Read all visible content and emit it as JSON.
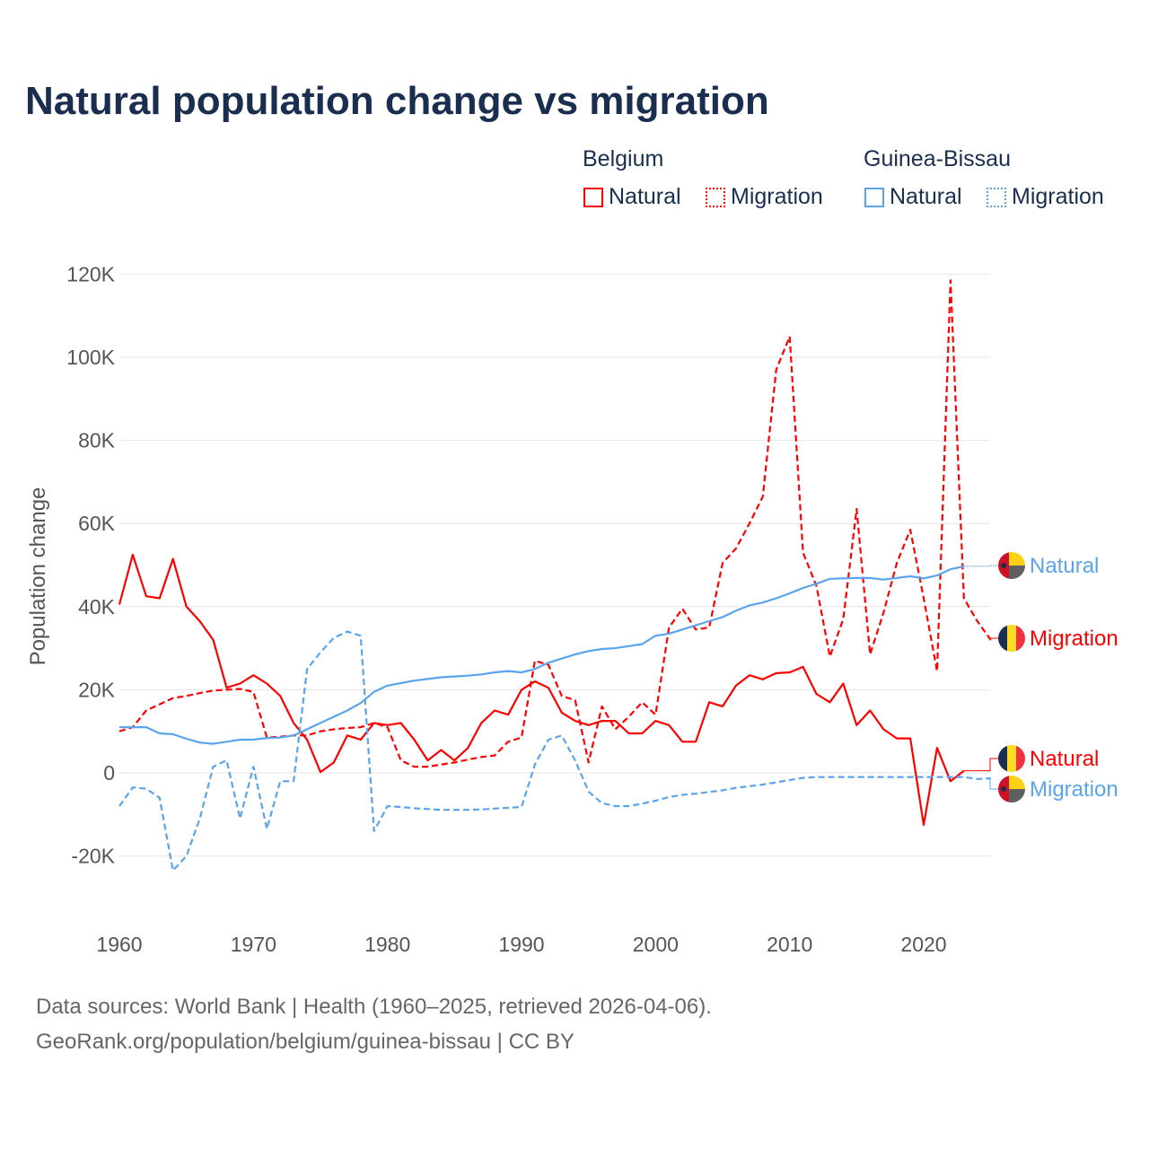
{
  "chart_data": {
    "type": "line",
    "title": "Natural population change vs migration",
    "xlabel": "",
    "ylabel": "Population change",
    "xlim": [
      1960,
      2025
    ],
    "ylim": [
      -20000,
      120000
    ],
    "yticks": [
      -20000,
      0,
      20000,
      40000,
      60000,
      80000,
      100000,
      120000
    ],
    "ytick_labels": [
      "-20K",
      "0",
      "20K",
      "40K",
      "60K",
      "80K",
      "100K",
      "120K"
    ],
    "xticks": [
      1960,
      1970,
      1980,
      1990,
      2000,
      2010,
      2020
    ],
    "xtick_labels": [
      "1960",
      "1970",
      "1980",
      "1990",
      "2000",
      "2010",
      "2020"
    ],
    "grid": true,
    "legend_position": "top-right",
    "legend_groups": [
      "Belgium",
      "Guinea-Bissau"
    ],
    "series": [
      {
        "name": "Natural",
        "country": "Belgium",
        "color": "#ff0000",
        "dash": "solid",
        "start_year": 1960,
        "end_label": "Natural",
        "values": [
          40500,
          52500,
          42500,
          42000,
          51500,
          40000,
          36500,
          32000,
          20500,
          21500,
          23500,
          21500,
          18500,
          12000,
          8000,
          200,
          2500,
          9000,
          8000,
          12000,
          11500,
          12000,
          8000,
          3000,
          5500,
          3000,
          6000,
          12000,
          15000,
          14000,
          20000,
          22000,
          20500,
          14500,
          12500,
          11500,
          12500,
          12500,
          9500,
          9500,
          12500,
          11500,
          7500,
          7500,
          17000,
          16000,
          21000,
          23500,
          22500,
          24000,
          24200,
          25500,
          19000,
          17000,
          21500,
          11500,
          15000,
          10500,
          8300,
          8300,
          -12500,
          6000,
          -2000,
          500
        ]
      },
      {
        "name": "Migration",
        "country": "Belgium",
        "color": "#ff0000",
        "dash": "dashed",
        "start_year": 1960,
        "end_label": "Migration",
        "values": [
          10000,
          11000,
          15000,
          16500,
          18000,
          18500,
          19200,
          19800,
          20000,
          20200,
          19500,
          8500,
          8700,
          9000,
          9000,
          10000,
          10500,
          10800,
          11000,
          12000,
          11000,
          3000,
          1500,
          1500,
          2000,
          2500,
          3200,
          3800,
          4200,
          7500,
          8500,
          27000,
          26000,
          18500,
          17500,
          2500,
          16000,
          10500,
          13500,
          17000,
          14000,
          35000,
          39500,
          34500,
          35000,
          50500,
          54000,
          60000,
          66500,
          97000,
          105000,
          53000,
          45000,
          28000,
          37000,
          63500,
          28500,
          38500,
          50500,
          58500,
          42000,
          24500,
          118500,
          42000,
          36500,
          32000
        ]
      },
      {
        "name": "Natural",
        "country": "Guinea-Bissau",
        "color": "#5ba4ec",
        "dash": "solid",
        "start_year": 1960,
        "end_label": "Natural",
        "values": [
          11000,
          11000,
          11000,
          9500,
          9300,
          8200,
          7300,
          7000,
          7500,
          8000,
          8000,
          8400,
          8500,
          9000,
          10500,
          12000,
          13500,
          15000,
          16800,
          19500,
          21000,
          21600,
          22200,
          22600,
          23000,
          23200,
          23400,
          23700,
          24200,
          24500,
          24200,
          25000,
          26500,
          27500,
          28500,
          29300,
          29800,
          30000,
          30500,
          31000,
          33000,
          33500,
          34500,
          35500,
          36500,
          37500,
          39000,
          40300,
          41000,
          42000,
          43200,
          44500,
          45500,
          46700,
          46800,
          46900,
          46900,
          46500,
          46900,
          47300,
          46800,
          47500,
          49000,
          49700
        ]
      },
      {
        "name": "Migration",
        "country": "Guinea-Bissau",
        "color": "#5ba4ec",
        "dash": "dashed",
        "start_year": 1960,
        "end_label": "Migration",
        "values": [
          -8000,
          -3500,
          -3800,
          -6000,
          -23500,
          -20000,
          -11000,
          1500,
          3000,
          -11000,
          1500,
          -13500,
          -2000,
          -2000,
          25000,
          29000,
          32500,
          34000,
          33000,
          -14000,
          -8000,
          -8200,
          -8500,
          -8700,
          -8900,
          -8900,
          -8900,
          -8800,
          -8600,
          -8400,
          -8200,
          2000,
          8000,
          9000,
          3000,
          -4500,
          -7300,
          -8000,
          -8000,
          -7400,
          -6700,
          -5800,
          -5300,
          -5000,
          -4600,
          -4200,
          -3600,
          -3200,
          -2800,
          -2300,
          -1700,
          -1200,
          -1000,
          -1000,
          -1000,
          -1000,
          -1000,
          -1000,
          -1000,
          -1000,
          -1000,
          -1000,
          -1000,
          -1000,
          -1500,
          -1300
        ]
      }
    ]
  },
  "legend": {
    "belgium": "Belgium",
    "guinea_bissau": "Guinea-Bissau",
    "natural": "Natural",
    "migration": "Migration"
  },
  "footer": {
    "line1": "Data sources: World Bank | Health (1960–2025, retrieved 2026-04-06).",
    "line2": "GeoRank.org/population/belgium/guinea-bissau | CC BY"
  }
}
